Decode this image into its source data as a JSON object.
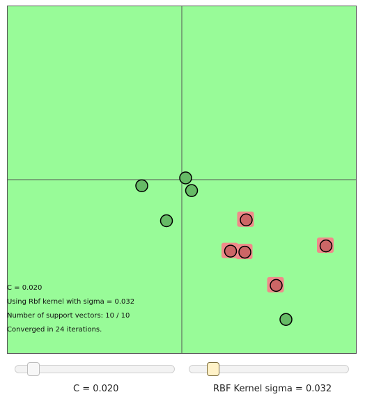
{
  "info": {
    "c_line": "C = 0.020",
    "kernel_line": "Using Rbf kernel with sigma = 0.032",
    "sv_line": "Number of support vectors: 10 / 10",
    "converged_line": "Converged in 24 iterations."
  },
  "controls": {
    "c_slider": {
      "label": "C = 0.020",
      "value": 0.02,
      "fraction": 0.08
    },
    "sigma_slider": {
      "label": "RBF Kernel sigma = 0.032",
      "value": 0.032,
      "fraction": 0.12
    }
  },
  "colors": {
    "background": "#98fb98",
    "negative_region": "#f08a8a",
    "positive_point": "#66bb66",
    "negative_point": "#cc6666",
    "axis": "#555555"
  },
  "points": [
    {
      "x": -0.23,
      "y": -0.035,
      "class": "green"
    },
    {
      "x": 0.022,
      "y": 0.01,
      "class": "green"
    },
    {
      "x": 0.056,
      "y": -0.063,
      "class": "green"
    },
    {
      "x": -0.088,
      "y": -0.237,
      "class": "green"
    },
    {
      "x": 0.598,
      "y": -0.806,
      "class": "green"
    },
    {
      "x": 0.37,
      "y": -0.232,
      "class": "red"
    },
    {
      "x": 0.28,
      "y": -0.412,
      "class": "red"
    },
    {
      "x": 0.362,
      "y": -0.418,
      "class": "red"
    },
    {
      "x": 0.828,
      "y": -0.382,
      "class": "red"
    },
    {
      "x": 0.542,
      "y": -0.61,
      "class": "red"
    }
  ]
}
